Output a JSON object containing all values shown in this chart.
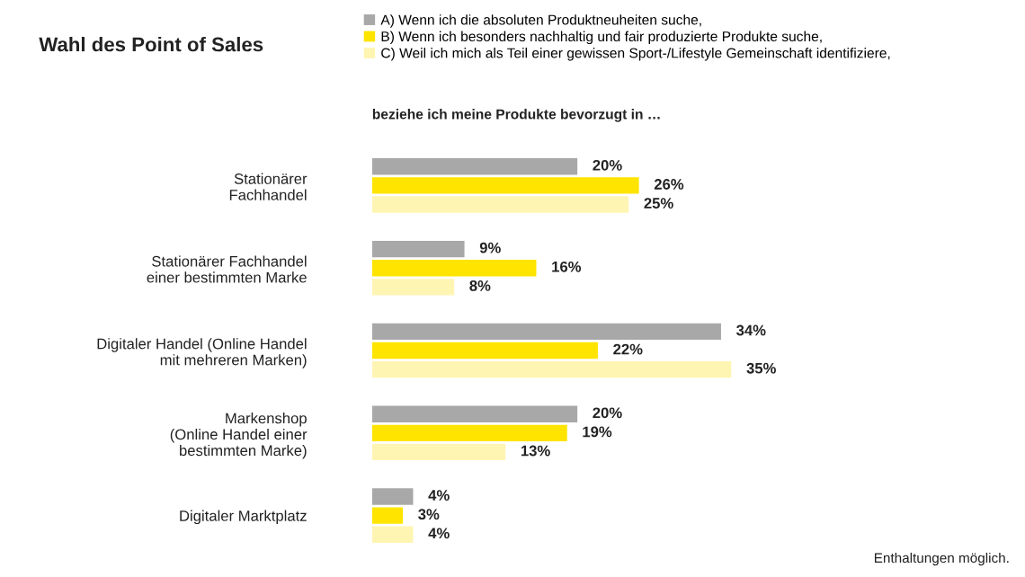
{
  "chart_data": {
    "type": "bar",
    "orientation": "horizontal",
    "title": "Wahl des Point of Sales",
    "subtitle": "beziehe ich meine Produkte bevorzugt in …",
    "categories": [
      "Stationärer\nFachhandel",
      "Stationärer Fachhandel\neiner bestimmten Marke",
      "Digitaler Handel (Online Handel\nmit mehreren Marken)",
      "Markenshop\n(Online Handel einer\nbestimmten Marke)",
      "Digitaler Marktplatz"
    ],
    "series": [
      {
        "name": "A) Wenn ich die absoluten Produktneuheiten suche,",
        "color": "#a8a8a8",
        "values": [
          20,
          9,
          34,
          20,
          4
        ],
        "value_labels": [
          "20%",
          "9%",
          "34%",
          "20%",
          "4%"
        ]
      },
      {
        "name": "B) Wenn ich besonders nachhaltig und fair produzierte Produkte suche,",
        "color": "#ffe400",
        "values": [
          26,
          16,
          22,
          19,
          3
        ],
        "value_labels": [
          "26%",
          "16%",
          "22%",
          "19%",
          "3%"
        ]
      },
      {
        "name": "C) Weil ich mich als Teil einer gewissen Sport-/Lifestyle Gemeinschaft identifiziere,",
        "color": "#fff5b3",
        "values": [
          25,
          8,
          35,
          13,
          4
        ],
        "value_labels": [
          "25%",
          "8%",
          "35%",
          "13%",
          "4%"
        ]
      }
    ],
    "tick_labels": false,
    "grid": false,
    "legend": "top",
    "annotations": [
      "Enthaltungen möglich."
    ]
  }
}
